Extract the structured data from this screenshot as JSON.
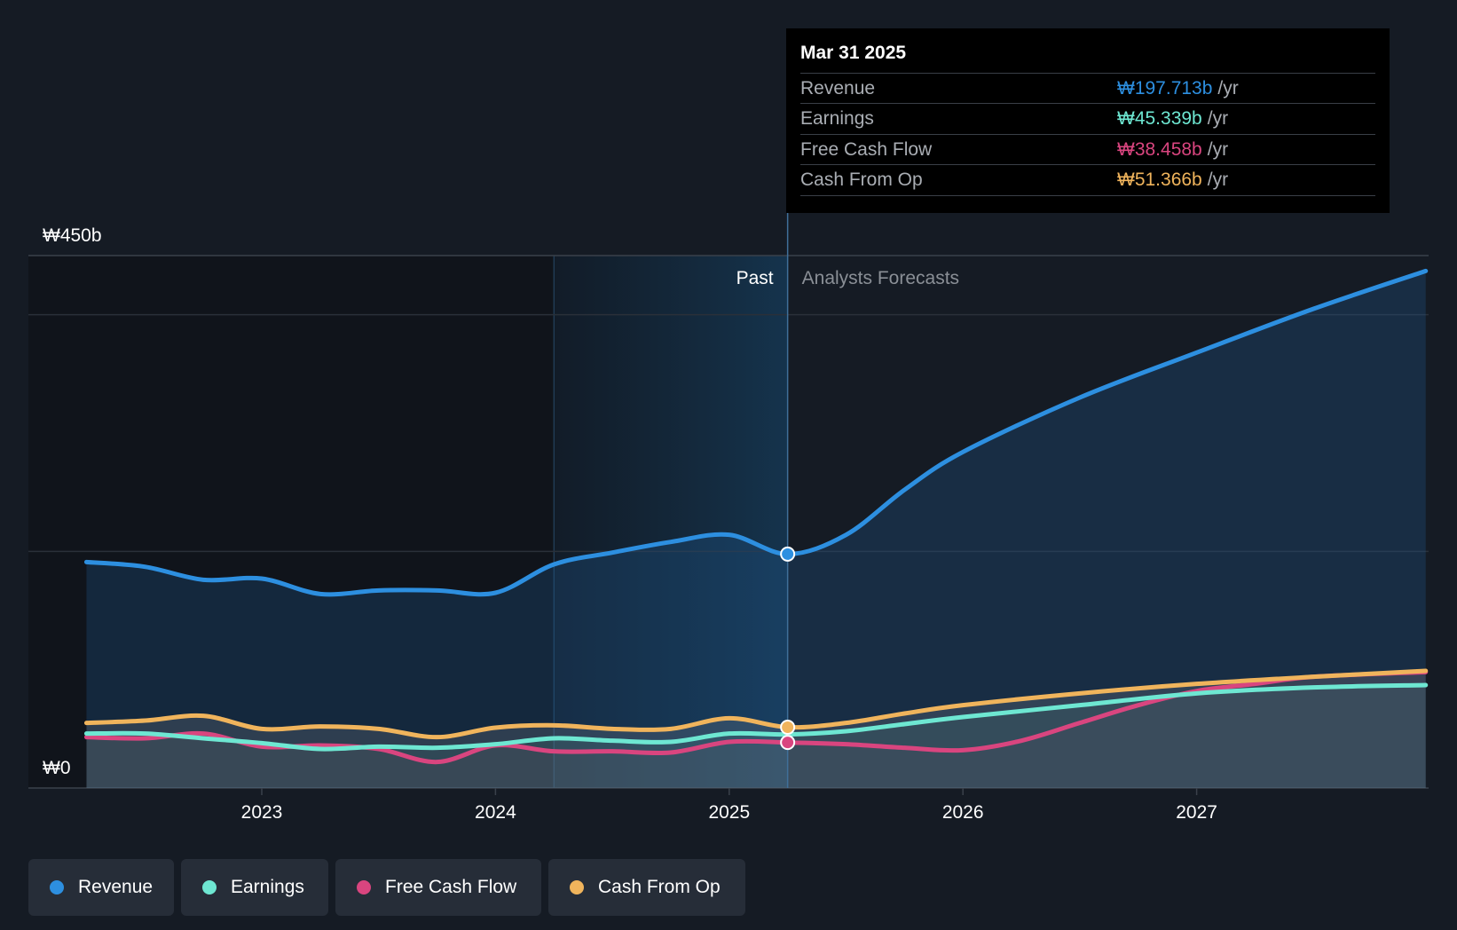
{
  "chart_data": {
    "type": "area",
    "y_axis": {
      "top_label": "₩450b",
      "bottom_label": "₩0",
      "ylim": [
        0,
        450
      ],
      "gridlines": [
        0,
        200,
        400
      ]
    },
    "x_axis": {
      "ticks": [
        "2023",
        "2024",
        "2025",
        "2026",
        "2027"
      ],
      "xlim": [
        2022.2,
        2027.98
      ]
    },
    "past_label": "Past",
    "forecast_label": "Analysts Forecasts",
    "divider_x": 2025.25,
    "shade_start_x": 2024.25,
    "series": [
      {
        "name": "Revenue",
        "color": "#2d8fe0",
        "points": [
          [
            2022.25,
            191
          ],
          [
            2022.5,
            187
          ],
          [
            2022.75,
            176
          ],
          [
            2023.0,
            177
          ],
          [
            2023.25,
            164
          ],
          [
            2023.5,
            167
          ],
          [
            2023.75,
            167
          ],
          [
            2024.0,
            165
          ],
          [
            2024.25,
            189
          ],
          [
            2024.5,
            199
          ],
          [
            2024.75,
            208
          ],
          [
            2025.0,
            214
          ],
          [
            2025.25,
            197.7
          ],
          [
            2025.5,
            214
          ],
          [
            2025.75,
            252
          ],
          [
            2026.0,
            284
          ],
          [
            2026.5,
            330
          ],
          [
            2027.0,
            368
          ],
          [
            2027.5,
            405
          ],
          [
            2027.98,
            437
          ]
        ]
      },
      {
        "name": "Earnings",
        "color": "#6ee7d2",
        "points": [
          [
            2022.25,
            46
          ],
          [
            2022.5,
            46
          ],
          [
            2022.75,
            42
          ],
          [
            2023.0,
            38
          ],
          [
            2023.25,
            33
          ],
          [
            2023.5,
            35
          ],
          [
            2023.75,
            34
          ],
          [
            2024.0,
            37
          ],
          [
            2024.25,
            42
          ],
          [
            2024.5,
            40
          ],
          [
            2024.75,
            39
          ],
          [
            2025.0,
            46
          ],
          [
            2025.25,
            45.3
          ],
          [
            2025.5,
            48
          ],
          [
            2025.75,
            54
          ],
          [
            2026.0,
            60
          ],
          [
            2026.5,
            70
          ],
          [
            2027.0,
            80
          ],
          [
            2027.5,
            85
          ],
          [
            2027.98,
            87
          ]
        ]
      },
      {
        "name": "Free Cash Flow",
        "color": "#d9457f",
        "points": [
          [
            2022.25,
            43
          ],
          [
            2022.5,
            42
          ],
          [
            2022.75,
            46
          ],
          [
            2023.0,
            35
          ],
          [
            2023.25,
            36
          ],
          [
            2023.5,
            33
          ],
          [
            2023.75,
            22
          ],
          [
            2024.0,
            36
          ],
          [
            2024.25,
            31
          ],
          [
            2024.5,
            31
          ],
          [
            2024.75,
            30
          ],
          [
            2025.0,
            39
          ],
          [
            2025.25,
            38.5
          ],
          [
            2025.5,
            37
          ],
          [
            2025.75,
            34
          ],
          [
            2026.0,
            32
          ],
          [
            2026.25,
            40
          ],
          [
            2026.5,
            55
          ],
          [
            2026.75,
            70
          ],
          [
            2027.0,
            82
          ],
          [
            2027.25,
            88
          ],
          [
            2027.5,
            94
          ],
          [
            2027.98,
            98
          ]
        ]
      },
      {
        "name": "Cash From Op",
        "color": "#f0b45c",
        "points": [
          [
            2022.25,
            55
          ],
          [
            2022.5,
            57
          ],
          [
            2022.75,
            61
          ],
          [
            2023.0,
            50
          ],
          [
            2023.25,
            52
          ],
          [
            2023.5,
            50
          ],
          [
            2023.75,
            43
          ],
          [
            2024.0,
            51
          ],
          [
            2024.25,
            53
          ],
          [
            2024.5,
            50
          ],
          [
            2024.75,
            50
          ],
          [
            2025.0,
            59
          ],
          [
            2025.25,
            51.4
          ],
          [
            2025.5,
            55
          ],
          [
            2025.75,
            63
          ],
          [
            2026.0,
            70
          ],
          [
            2026.5,
            80
          ],
          [
            2027.0,
            88
          ],
          [
            2027.5,
            94
          ],
          [
            2027.98,
            99
          ]
        ]
      }
    ]
  },
  "tooltip": {
    "date": "Mar 31 2025",
    "rows": [
      {
        "label": "Revenue",
        "value": "₩197.713b",
        "unit": "/yr",
        "color": "#2d8fe0"
      },
      {
        "label": "Earnings",
        "value": "₩45.339b",
        "unit": "/yr",
        "color": "#6ee7d2"
      },
      {
        "label": "Free Cash Flow",
        "value": "₩38.458b",
        "unit": "/yr",
        "color": "#d9457f"
      },
      {
        "label": "Cash From Op",
        "value": "₩51.366b",
        "unit": "/yr",
        "color": "#f0b45c"
      }
    ]
  },
  "legend": [
    {
      "label": "Revenue",
      "color": "#2d8fe0"
    },
    {
      "label": "Earnings",
      "color": "#6ee7d2"
    },
    {
      "label": "Free Cash Flow",
      "color": "#d9457f"
    },
    {
      "label": "Cash From Op",
      "color": "#f0b45c"
    }
  ]
}
